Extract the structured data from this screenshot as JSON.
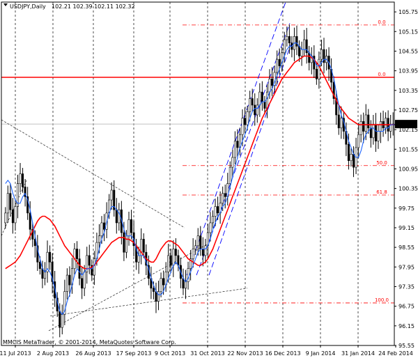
{
  "chart_data": {
    "type": "candlestick",
    "symbol_line": "USDJPY,Daily",
    "ohlc_text": "102.21 102.39 102.11 102.32",
    "current_price_label": "102.32",
    "copyright": "MMCIS MetaTrader, © 2001-2014, MetaQuotes Software Corp.",
    "ylim": [
      95.55,
      106.05
    ],
    "y_ticks": [
      105.75,
      105.15,
      104.55,
      103.95,
      103.35,
      102.75,
      102.15,
      101.55,
      100.95,
      100.35,
      99.75,
      99.15,
      98.55,
      97.95,
      97.35,
      96.75,
      96.15,
      95.55
    ],
    "x_ticks": [
      "11 Jul 2013",
      "2 Aug 2013",
      "26 Aug 2013",
      "17 Sep 2013",
      "9 Oct 2013",
      "31 Oct 2013",
      "22 Nov 2013",
      "16 Dec 2013",
      "9 Jan 2014",
      "31 Jan 2014",
      "24 Feb 2014"
    ],
    "fibo_levels": [
      {
        "label": "0.0",
        "price": 105.35
      },
      {
        "label": "0.0",
        "price": 103.75
      },
      {
        "label": "50.0",
        "price": 101.05
      },
      {
        "label": "61.8",
        "price": 100.15
      },
      {
        "label": "100.0",
        "price": 96.85
      }
    ],
    "horizontal_line": 103.75,
    "current_price": 102.32,
    "colors": {
      "candle": "#000000",
      "fast_ma": "#1e64ff",
      "slow_ma": "#ff0000",
      "fibo": "#ff0000",
      "channel": "#0000ff",
      "grid": "#000000"
    },
    "closes": [
      99.6,
      100.2,
      99.7,
      99.3,
      99.8,
      100.5,
      100.8,
      100.4,
      100.1,
      99.6,
      99.1,
      98.8,
      98.6,
      98.1,
      97.9,
      97.6,
      97.8,
      98.4,
      98.1,
      97.5,
      97.0,
      96.6,
      96.1,
      96.5,
      97.2,
      97.7,
      97.4,
      97.9,
      98.5,
      98.2,
      97.6,
      97.3,
      97.8,
      98.3,
      98.0,
      97.7,
      98.2,
      98.7,
      98.9,
      99.3,
      99.1,
      99.6,
      100.0,
      100.3,
      99.7,
      99.3,
      99.7,
      99.0,
      98.4,
      98.9,
      99.4,
      99.0,
      98.6,
      98.1,
      98.3,
      98.8,
      98.4,
      98.0,
      97.6,
      97.3,
      97.2,
      96.9,
      97.2,
      97.6,
      97.4,
      97.8,
      98.3,
      98.0,
      98.5,
      98.3,
      98.0,
      97.6,
      97.3,
      97.5,
      97.9,
      98.2,
      98.5,
      98.6,
      98.9,
      98.5,
      98.3,
      98.6,
      99.0,
      99.3,
      99.5,
      99.8,
      99.6,
      99.9,
      100.2,
      100.1,
      100.5,
      101.0,
      101.3,
      101.8,
      101.6,
      102.0,
      102.5,
      102.3,
      102.7,
      103.1,
      102.9,
      102.6,
      102.9,
      103.3,
      103.0,
      102.8,
      103.3,
      103.7,
      103.5,
      103.9,
      104.3,
      104.1,
      104.5,
      104.9,
      105.0,
      104.8,
      104.6,
      105.0,
      104.7,
      104.4,
      104.6,
      104.9,
      104.5,
      104.2,
      104.4,
      104.0,
      103.7,
      104.3,
      104.6,
      104.2,
      104.4,
      104.0,
      103.6,
      103.1,
      102.6,
      102.2,
      102.5,
      102.1,
      101.7,
      101.2,
      101.4,
      101.0,
      101.6,
      102.0,
      102.4,
      102.1,
      102.6,
      102.2,
      101.9,
      102.3,
      101.8,
      102.1,
      102.4,
      102.2,
      102.5,
      102.1,
      102.3,
      102.32
    ],
    "fast_ma": [
      100.5,
      100.6,
      100.5,
      100.2,
      100.0,
      99.9,
      99.9,
      100.1,
      100.2,
      100.0,
      99.7,
      99.3,
      98.9,
      98.5,
      98.2,
      97.9,
      97.8,
      97.9,
      97.8,
      97.6,
      97.3,
      96.9,
      96.6,
      96.5,
      96.6,
      96.9,
      97.1,
      97.4,
      97.7,
      97.9,
      97.8,
      97.7,
      97.8,
      97.9,
      97.9,
      97.9,
      98.0,
      98.2,
      98.5,
      98.8,
      99.0,
      99.3,
      99.6,
      99.8,
      99.8,
      99.7,
      99.6,
      99.4,
      99.1,
      98.9,
      98.9,
      98.9,
      98.8,
      98.5,
      98.3,
      98.3,
      98.3,
      98.1,
      97.9,
      97.6,
      97.4,
      97.2,
      97.1,
      97.1,
      97.2,
      97.4,
      97.6,
      97.8,
      98.0,
      98.1,
      98.0,
      97.8,
      97.6,
      97.5,
      97.6,
      97.8,
      98.0,
      98.2,
      98.4,
      98.5,
      98.5,
      98.5,
      98.6,
      98.8,
      99.1,
      99.3,
      99.5,
      99.6,
      99.8,
      99.9,
      100.1,
      100.4,
      100.7,
      101.0,
      101.3,
      101.6,
      101.8,
      102.0,
      102.2,
      102.5,
      102.7,
      102.8,
      102.8,
      102.9,
      103.0,
      103.0,
      103.1,
      103.3,
      103.4,
      103.6,
      103.8,
      104.0,
      104.2,
      104.4,
      104.6,
      104.7,
      104.7,
      104.8,
      104.8,
      104.7,
      104.6,
      104.6,
      104.6,
      104.5,
      104.4,
      104.3,
      104.1,
      104.1,
      104.2,
      104.3,
      104.3,
      104.2,
      104.0,
      103.7,
      103.3,
      102.9,
      102.6,
      102.4,
      102.1,
      101.8,
      101.6,
      101.4,
      101.3,
      101.3,
      101.5,
      101.8,
      102.0,
      102.1,
      102.2,
      102.2,
      102.1,
      102.1,
      102.1,
      102.1,
      102.2,
      102.2,
      102.3,
      102.3,
      102.3,
      102.3
    ],
    "slow_ma": [
      97.9,
      97.95,
      98.0,
      98.05,
      98.1,
      98.2,
      98.3,
      98.45,
      98.6,
      98.75,
      98.9,
      99.05,
      99.2,
      99.35,
      99.45,
      99.5,
      99.5,
      99.45,
      99.4,
      99.3,
      99.2,
      99.05,
      98.9,
      98.75,
      98.6,
      98.5,
      98.4,
      98.3,
      98.2,
      98.1,
      98.0,
      97.95,
      97.9,
      97.9,
      97.9,
      97.95,
      98.0,
      98.1,
      98.2,
      98.3,
      98.4,
      98.5,
      98.6,
      98.7,
      98.75,
      98.8,
      98.85,
      98.85,
      98.85,
      98.8,
      98.8,
      98.75,
      98.7,
      98.6,
      98.5,
      98.4,
      98.3,
      98.2,
      98.15,
      98.1,
      98.1,
      98.2,
      98.35,
      98.5,
      98.6,
      98.7,
      98.75,
      98.75,
      98.7,
      98.65,
      98.6,
      98.5,
      98.4,
      98.3,
      98.2,
      98.15,
      98.1,
      98.05,
      98.0,
      98.0,
      98.05,
      98.1,
      98.2,
      98.35,
      98.5,
      98.7,
      98.9,
      99.1,
      99.3,
      99.5,
      99.7,
      99.9,
      100.1,
      100.3,
      100.5,
      100.7,
      100.9,
      101.1,
      101.3,
      101.5,
      101.7,
      101.9,
      102.1,
      102.3,
      102.5,
      102.65,
      102.8,
      102.95,
      103.1,
      103.25,
      103.4,
      103.55,
      103.7,
      103.8,
      103.9,
      104.0,
      104.1,
      104.2,
      104.25,
      104.3,
      104.35,
      104.4,
      104.4,
      104.4,
      104.35,
      104.3,
      104.2,
      104.1,
      103.95,
      103.8,
      103.65,
      103.5,
      103.35,
      103.2,
      103.05,
      102.9,
      102.8,
      102.7,
      102.6,
      102.5,
      102.45,
      102.4,
      102.35,
      102.3,
      102.3,
      102.3,
      102.3,
      102.3,
      102.3,
      102.3,
      102.3,
      102.3,
      102.3,
      102.3,
      102.3,
      102.3,
      102.3,
      102.3,
      102.3,
      102.3
    ]
  }
}
